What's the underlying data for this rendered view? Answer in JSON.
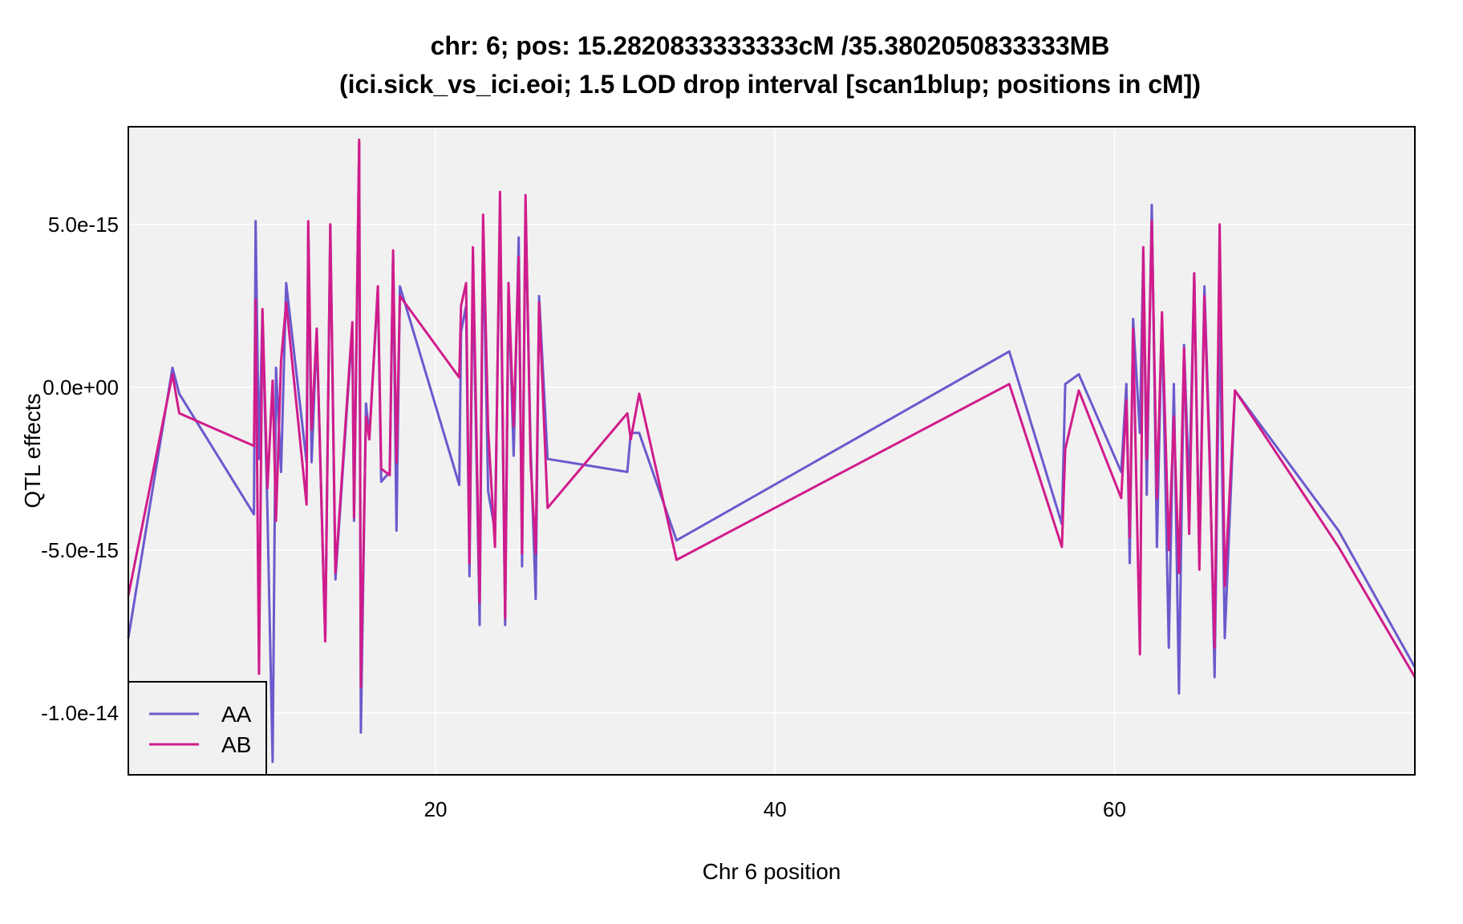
{
  "chart_data": {
    "type": "line",
    "title_line1": "chr: 6; pos: 15.2820833333333cM /35.3802050833333MB",
    "title_line2": "(ici.sick_vs_ici.eoi; 1.5 LOD drop interval [scan1blup; positions in cM])",
    "xlabel": "Chr 6 position",
    "ylabel": "QTL effects",
    "xlim": [
      1.9,
      77.7
    ],
    "ylim": [
      -1.19e-14,
      8e-15
    ],
    "x_ticks": [
      20,
      40,
      60
    ],
    "x_tick_labels": [
      "20",
      "40",
      "60"
    ],
    "y_ticks": [
      5e-15,
      0,
      -5e-15,
      -1e-14
    ],
    "y_tick_labels": [
      "5.0e-15",
      "0.0e+00",
      "-5.0e-15",
      "-1.0e-14"
    ],
    "grid": true,
    "legend_position": "bottom-left",
    "colors": {
      "AA": "#6a5acd",
      "AB": "#d01c8b",
      "panel": "#f1f1f1",
      "grid": "#ffffff"
    },
    "series": [
      {
        "name": "AA",
        "color": "#6a5acd",
        "points": [
          [
            1.9,
            -7.7e-15
          ],
          [
            4.5,
            6e-16
          ],
          [
            4.9,
            -2e-16
          ],
          [
            9.3,
            -3.9e-15
          ],
          [
            9.4,
            5.1e-15
          ],
          [
            9.6,
            -2.2e-15
          ],
          [
            9.8,
            2.3e-15
          ],
          [
            10.1,
            -3.9e-15
          ],
          [
            10.4,
            -1.15e-14
          ],
          [
            10.6,
            6e-16
          ],
          [
            10.9,
            -2.6e-15
          ],
          [
            11.2,
            3.2e-15
          ],
          [
            12.4,
            -2.3e-15
          ],
          [
            12.5,
            4.9e-15
          ],
          [
            12.7,
            -2.3e-15
          ],
          [
            13.0,
            1.7e-15
          ],
          [
            13.5,
            -7.8e-15
          ],
          [
            13.8,
            5e-15
          ],
          [
            14.1,
            -5.9e-15
          ],
          [
            15.1,
            1.8e-15
          ],
          [
            15.2,
            -4.1e-15
          ],
          [
            15.5,
            7.5e-15
          ],
          [
            15.6,
            -1.06e-14
          ],
          [
            15.9,
            -5e-16
          ],
          [
            16.1,
            -1.5e-15
          ],
          [
            16.6,
            3e-15
          ],
          [
            16.8,
            -2.9e-15
          ],
          [
            17.3,
            -2.6e-15
          ],
          [
            17.5,
            4.1e-15
          ],
          [
            17.7,
            -4.4e-15
          ],
          [
            17.9,
            3.1e-15
          ],
          [
            21.4,
            -3e-15
          ],
          [
            21.5,
            1.7e-15
          ],
          [
            21.8,
            2.5e-15
          ],
          [
            22.0,
            -5.8e-15
          ],
          [
            22.2,
            3.6e-15
          ],
          [
            22.6,
            -7.3e-15
          ],
          [
            22.8,
            4.8e-15
          ],
          [
            23.1,
            -3.2e-15
          ],
          [
            23.5,
            -4.4e-15
          ],
          [
            23.8,
            5.4e-15
          ],
          [
            24.1,
            -7.3e-15
          ],
          [
            24.3,
            3e-15
          ],
          [
            24.6,
            -2.1e-15
          ],
          [
            24.9,
            4.6e-15
          ],
          [
            25.1,
            -5.5e-15
          ],
          [
            25.3,
            5.5e-15
          ],
          [
            25.6,
            -1.8e-15
          ],
          [
            25.9,
            -6.5e-15
          ],
          [
            26.1,
            2.8e-15
          ],
          [
            26.6,
            -2.2e-15
          ],
          [
            31.3,
            -2.6e-15
          ],
          [
            31.5,
            -1.4e-15
          ],
          [
            32.0,
            -1.4e-15
          ],
          [
            34.2,
            -4.7e-15
          ],
          [
            53.8,
            1.1e-15
          ],
          [
            56.9,
            -4.2e-15
          ],
          [
            57.1,
            1e-16
          ],
          [
            57.9,
            4e-16
          ],
          [
            60.4,
            -2.6e-15
          ],
          [
            60.7,
            1e-16
          ],
          [
            60.9,
            -5.4e-15
          ],
          [
            61.1,
            2.1e-15
          ],
          [
            61.5,
            -1.4e-15
          ],
          [
            61.7,
            4.2e-15
          ],
          [
            61.9,
            -3.3e-15
          ],
          [
            62.2,
            5.6e-15
          ],
          [
            62.5,
            -4.9e-15
          ],
          [
            62.8,
            2.2e-15
          ],
          [
            63.2,
            -8e-15
          ],
          [
            63.5,
            1e-16
          ],
          [
            63.8,
            -9.4e-15
          ],
          [
            64.1,
            1.3e-15
          ],
          [
            64.4,
            -3.2e-15
          ],
          [
            64.7,
            3.5e-15
          ],
          [
            65.0,
            -5.2e-15
          ],
          [
            65.3,
            3.1e-15
          ],
          [
            65.6,
            -1.8e-15
          ],
          [
            65.9,
            -8.9e-15
          ],
          [
            66.2,
            2.4e-15
          ],
          [
            66.5,
            -7.7e-15
          ],
          [
            67.1,
            -1e-16
          ],
          [
            73.2,
            -4.4e-15
          ],
          [
            77.7,
            -8.6e-15
          ]
        ]
      },
      {
        "name": "AB",
        "color": "#d01c8b",
        "points": [
          [
            1.9,
            -6.4e-15
          ],
          [
            4.5,
            4e-16
          ],
          [
            4.9,
            -8e-16
          ],
          [
            9.3,
            -1.8e-15
          ],
          [
            9.4,
            2.7e-15
          ],
          [
            9.6,
            -8.8e-15
          ],
          [
            9.8,
            2.4e-15
          ],
          [
            10.1,
            -3.1e-15
          ],
          [
            10.4,
            2e-16
          ],
          [
            10.6,
            -4.1e-15
          ],
          [
            10.9,
            8e-16
          ],
          [
            11.2,
            2.6e-15
          ],
          [
            12.4,
            -3.6e-15
          ],
          [
            12.5,
            5.1e-15
          ],
          [
            12.7,
            -1.3e-15
          ],
          [
            13.0,
            1.8e-15
          ],
          [
            13.5,
            -7.8e-15
          ],
          [
            13.8,
            5e-15
          ],
          [
            14.1,
            -5.7e-15
          ],
          [
            15.1,
            2e-15
          ],
          [
            15.2,
            -4e-15
          ],
          [
            15.5,
            7.6e-15
          ],
          [
            15.6,
            -9.2e-15
          ],
          [
            15.9,
            -9e-16
          ],
          [
            16.1,
            -1.6e-15
          ],
          [
            16.6,
            3.1e-15
          ],
          [
            16.8,
            -2.5e-15
          ],
          [
            17.3,
            -2.7e-15
          ],
          [
            17.5,
            4.2e-15
          ],
          [
            17.7,
            -2.3e-15
          ],
          [
            17.9,
            2.8e-15
          ],
          [
            21.4,
            3e-16
          ],
          [
            21.5,
            2.5e-15
          ],
          [
            21.8,
            3.2e-15
          ],
          [
            22.0,
            -5.4e-15
          ],
          [
            22.2,
            4.3e-15
          ],
          [
            22.6,
            -6.6e-15
          ],
          [
            22.8,
            5.3e-15
          ],
          [
            23.1,
            -1.3e-15
          ],
          [
            23.5,
            -4.9e-15
          ],
          [
            23.8,
            6e-15
          ],
          [
            24.1,
            -7.1e-15
          ],
          [
            24.3,
            3.2e-15
          ],
          [
            24.6,
            -1.2e-15
          ],
          [
            24.9,
            4e-15
          ],
          [
            25.1,
            -5.1e-15
          ],
          [
            25.3,
            5.9e-15
          ],
          [
            25.6,
            -2.3e-15
          ],
          [
            25.9,
            -5.1e-15
          ],
          [
            26.1,
            2.6e-15
          ],
          [
            26.6,
            -3.7e-15
          ],
          [
            31.3,
            -8e-16
          ],
          [
            31.5,
            -1.6e-15
          ],
          [
            32.0,
            -2e-16
          ],
          [
            34.2,
            -5.3e-15
          ],
          [
            53.8,
            1e-16
          ],
          [
            56.9,
            -4.9e-15
          ],
          [
            57.1,
            -1.9e-15
          ],
          [
            57.9,
            -1e-16
          ],
          [
            60.4,
            -3.4e-15
          ],
          [
            60.7,
            -4e-16
          ],
          [
            60.9,
            -4.6e-15
          ],
          [
            61.1,
            1.8e-15
          ],
          [
            61.5,
            -8.2e-15
          ],
          [
            61.7,
            4.3e-15
          ],
          [
            61.9,
            -2.2e-15
          ],
          [
            62.2,
            5.1e-15
          ],
          [
            62.5,
            -3.4e-15
          ],
          [
            62.8,
            2.3e-15
          ],
          [
            63.2,
            -5e-15
          ],
          [
            63.5,
            -9e-16
          ],
          [
            63.8,
            -5.7e-15
          ],
          [
            64.1,
            1.2e-15
          ],
          [
            64.4,
            -4.5e-15
          ],
          [
            64.7,
            3.5e-15
          ],
          [
            65.0,
            -5.6e-15
          ],
          [
            65.3,
            2.8e-15
          ],
          [
            65.6,
            -2.2e-15
          ],
          [
            65.9,
            -8e-15
          ],
          [
            66.2,
            5e-15
          ],
          [
            66.5,
            -6.1e-15
          ],
          [
            67.1,
            -1e-16
          ],
          [
            73.2,
            -4.9e-15
          ],
          [
            77.7,
            -8.9e-15
          ]
        ]
      }
    ]
  }
}
